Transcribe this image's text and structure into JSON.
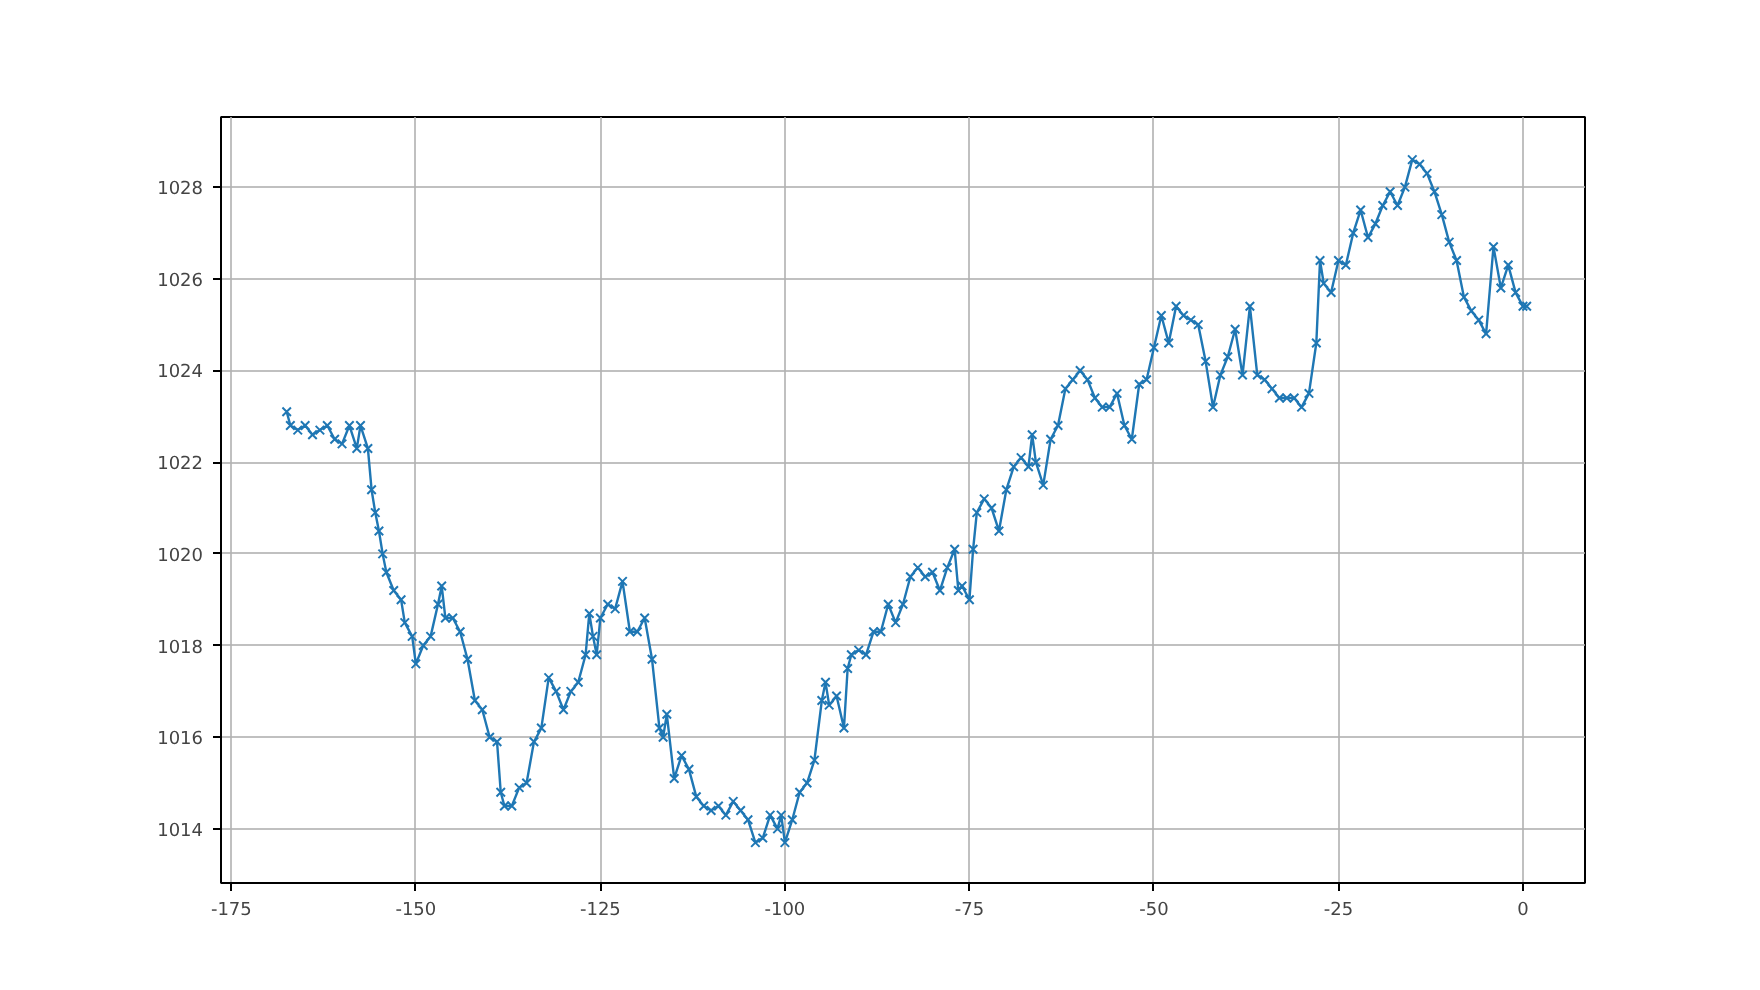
{
  "chart_data": {
    "type": "line",
    "marker": "cross",
    "grid": true,
    "line_style": "solid",
    "xlim": [
      -176.4,
      8.4
    ],
    "ylim": [
      1012.82,
      1029.53
    ],
    "xticks": [
      -175,
      -150,
      -125,
      -100,
      -75,
      -50,
      -25,
      0
    ],
    "yticks": [
      1014,
      1016,
      1018,
      1020,
      1022,
      1024,
      1026,
      1028
    ],
    "series": [
      {
        "color": "#1f77b4",
        "x": [
          -167.5,
          -167,
          -166,
          -165,
          -164,
          -163,
          -162,
          -161,
          -160,
          -159,
          -158,
          -157.5,
          -156.5,
          -156,
          -155.5,
          -155,
          -154.5,
          -154,
          -153,
          -152,
          -151.5,
          -150.5,
          -150,
          -149,
          -148,
          -147,
          -146.5,
          -146,
          -145,
          -144,
          -143,
          -142,
          -141,
          -140,
          -139,
          -138.5,
          -138,
          -137,
          -136,
          -135,
          -134,
          -133,
          -132,
          -131,
          -130,
          -129,
          -128,
          -127,
          -126.5,
          -126,
          -125.5,
          -125,
          -124,
          -123,
          -122,
          -121,
          -120,
          -119,
          -118,
          -117,
          -116.5,
          -116,
          -115,
          -114,
          -113,
          -112,
          -111,
          -110,
          -109,
          -108,
          -107,
          -106,
          -105,
          -104,
          -103,
          -102,
          -101,
          -100.5,
          -100,
          -99,
          -98,
          -97,
          -96,
          -95,
          -94.5,
          -94,
          -93,
          -92,
          -91.5,
          -91,
          -90,
          -89,
          -88,
          -87,
          -86,
          -85,
          -84,
          -83,
          -82,
          -81,
          -80,
          -79,
          -78,
          -77,
          -76.5,
          -76,
          -75,
          -74.5,
          -74,
          -73,
          -72,
          -71,
          -70,
          -69,
          -68,
          -67,
          -66.5,
          -66,
          -65,
          -64,
          -63,
          -62,
          -61,
          -60,
          -59,
          -58,
          -57,
          -56,
          -55,
          -54,
          -53,
          -52,
          -51,
          -50,
          -49,
          -48,
          -47,
          -46,
          -45,
          -44,
          -43,
          -42,
          -41,
          -40,
          -39,
          -38,
          -37,
          -36,
          -35,
          -34,
          -33,
          -32,
          -31,
          -30,
          -29,
          -28,
          -27.5,
          -27,
          -26,
          -25,
          -24,
          -23,
          -22,
          -21,
          -20,
          -19,
          -18,
          -17,
          -16,
          -15,
          -14,
          -13,
          -12,
          -11,
          -10,
          -9,
          -8,
          -7,
          -6,
          -5,
          -4,
          -3,
          -2,
          -1,
          0,
          0.5
        ],
        "values": [
          1023.1,
          1022.8,
          1022.7,
          1022.8,
          1022.6,
          1022.7,
          1022.8,
          1022.5,
          1022.4,
          1022.8,
          1022.3,
          1022.8,
          1022.3,
          1021.4,
          1020.9,
          1020.5,
          1020.0,
          1019.6,
          1019.2,
          1019.0,
          1018.5,
          1018.2,
          1017.6,
          1018.0,
          1018.2,
          1018.9,
          1019.3,
          1018.6,
          1018.6,
          1018.3,
          1017.7,
          1016.8,
          1016.6,
          1016.0,
          1015.9,
          1014.8,
          1014.5,
          1014.5,
          1014.9,
          1015.0,
          1015.9,
          1016.2,
          1017.3,
          1017.0,
          1016.6,
          1017.0,
          1017.2,
          1017.8,
          1018.7,
          1018.2,
          1017.8,
          1018.6,
          1018.9,
          1018.8,
          1019.4,
          1018.3,
          1018.3,
          1018.6,
          1017.7,
          1016.2,
          1016.0,
          1016.5,
          1015.1,
          1015.6,
          1015.3,
          1014.7,
          1014.5,
          1014.4,
          1014.5,
          1014.3,
          1014.6,
          1014.4,
          1014.2,
          1013.7,
          1013.8,
          1014.3,
          1014.0,
          1014.3,
          1013.7,
          1014.2,
          1014.8,
          1015.0,
          1015.5,
          1016.8,
          1017.2,
          1016.7,
          1016.9,
          1016.2,
          1017.5,
          1017.8,
          1017.9,
          1017.8,
          1018.3,
          1018.3,
          1018.9,
          1018.5,
          1018.9,
          1019.5,
          1019.7,
          1019.5,
          1019.6,
          1019.2,
          1019.7,
          1020.1,
          1019.2,
          1019.3,
          1019.0,
          1020.1,
          1020.9,
          1021.2,
          1021.0,
          1020.5,
          1021.4,
          1021.9,
          1022.1,
          1021.9,
          1022.6,
          1022.0,
          1021.5,
          1022.5,
          1022.8,
          1023.6,
          1023.8,
          1024.0,
          1023.8,
          1023.4,
          1023.2,
          1023.2,
          1023.5,
          1022.8,
          1022.5,
          1023.7,
          1023.8,
          1024.5,
          1025.2,
          1024.6,
          1025.4,
          1025.2,
          1025.1,
          1025.0,
          1024.2,
          1023.2,
          1023.9,
          1024.3,
          1024.9,
          1023.9,
          1025.4,
          1023.9,
          1023.8,
          1023.6,
          1023.4,
          1023.4,
          1023.4,
          1023.2,
          1023.5,
          1024.6,
          1026.4,
          1025.9,
          1025.7,
          1026.4,
          1026.3,
          1027.0,
          1027.5,
          1026.9,
          1027.2,
          1027.6,
          1027.9,
          1027.6,
          1028.0,
          1028.6,
          1028.5,
          1028.3,
          1027.9,
          1027.4,
          1026.8,
          1026.4,
          1025.6,
          1025.3,
          1025.1,
          1024.8,
          1026.7,
          1025.8,
          1026.3,
          1025.7,
          1025.4,
          1025.4
        ]
      }
    ]
  }
}
